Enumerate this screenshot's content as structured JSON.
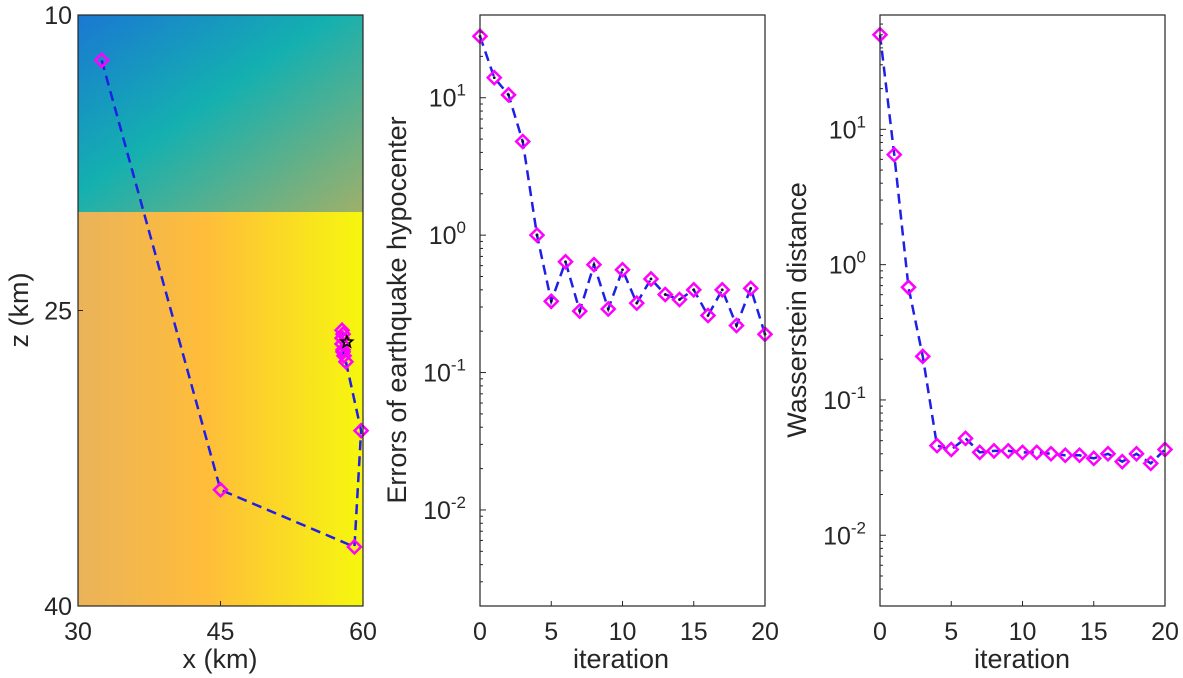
{
  "chart_data": [
    {
      "type": "scatter",
      "panel": "hypocenter-trajectory",
      "xlabel": "x (km)",
      "ylabel": "z (km)",
      "xlim": [
        30,
        60
      ],
      "ylim": [
        10,
        40
      ],
      "y_reversed": true,
      "xticks": [
        "30",
        "45",
        "60"
      ],
      "yticks": [
        "10",
        "25",
        "40"
      ],
      "background": {
        "upper_layer_z": [
          10,
          20
        ],
        "lower_layer_z": [
          20,
          40
        ],
        "upper_colors": [
          "#1a78d2",
          "#14b0b0",
          "#9fb06a"
        ],
        "lower_colors": [
          "#eab35a",
          "#ffbd3a",
          "#f6f70e"
        ]
      },
      "points": [
        {
          "x": 32.5,
          "z": 12.3
        },
        {
          "x": 45.0,
          "z": 34.1
        },
        {
          "x": 59.1,
          "z": 37.0
        },
        {
          "x": 59.8,
          "z": 31.1
        },
        {
          "x": 58.2,
          "z": 27.6
        },
        {
          "x": 58.0,
          "z": 27.3
        },
        {
          "x": 57.9,
          "z": 27.0
        },
        {
          "x": 57.8,
          "z": 26.7
        },
        {
          "x": 57.8,
          "z": 26.4
        },
        {
          "x": 57.9,
          "z": 26.2
        },
        {
          "x": 57.8,
          "z": 26.0
        },
        {
          "x": 57.9,
          "z": 27.1
        }
      ],
      "true_hypocenter": {
        "x": 58.3,
        "z": 26.6
      }
    },
    {
      "type": "line",
      "panel": "hypocenter-error",
      "xlabel": "iteration",
      "ylabel": "Errors of earthquake hypocenter",
      "xlim": [
        0,
        20
      ],
      "ylim": [
        0.002,
        40
      ],
      "yscale": "log",
      "xticks": [
        "0",
        "5",
        "10",
        "15",
        "20"
      ],
      "yticks": [
        {
          "base": "10",
          "exp": "1",
          "value": 10
        },
        {
          "base": "10",
          "exp": "0",
          "value": 1
        },
        {
          "base": "10",
          "exp": "-1",
          "value": 0.1
        },
        {
          "base": "10",
          "exp": "-2",
          "value": 0.01
        }
      ],
      "x": [
        0,
        1,
        2,
        3,
        4,
        5,
        6,
        7,
        8,
        9,
        10,
        11,
        12,
        13,
        14,
        15,
        16,
        17,
        18,
        19,
        20
      ],
      "values": [
        28,
        14,
        10.5,
        4.8,
        1.0,
        0.33,
        0.64,
        0.28,
        0.61,
        0.29,
        0.56,
        0.32,
        0.48,
        0.37,
        0.34,
        0.4,
        0.26,
        0.4,
        0.22,
        0.41,
        0.19
      ]
    },
    {
      "type": "line",
      "panel": "wasserstein-distance",
      "xlabel": "iteration",
      "ylabel": "Wasserstein distance",
      "xlim": [
        0,
        20
      ],
      "ylim": [
        0.003,
        70
      ],
      "yscale": "log",
      "xticks": [
        "0",
        "5",
        "10",
        "15",
        "20"
      ],
      "yticks": [
        {
          "base": "10",
          "exp": "1",
          "value": 10
        },
        {
          "base": "10",
          "exp": "0",
          "value": 1
        },
        {
          "base": "10",
          "exp": "-1",
          "value": 0.1
        },
        {
          "base": "10",
          "exp": "-2",
          "value": 0.01
        }
      ],
      "x": [
        0,
        1,
        2,
        3,
        4,
        5,
        6,
        7,
        8,
        9,
        10,
        11,
        12,
        13,
        14,
        15,
        16,
        17,
        18,
        19,
        20
      ],
      "values": [
        50,
        6.5,
        0.68,
        0.21,
        0.046,
        0.043,
        0.052,
        0.041,
        0.042,
        0.042,
        0.041,
        0.041,
        0.04,
        0.039,
        0.039,
        0.037,
        0.04,
        0.035,
        0.04,
        0.034,
        0.043
      ]
    }
  ],
  "colors": {
    "line": "#1f1fe6",
    "marker": "#ff00ff",
    "dot": "#111111",
    "axis": "#262626"
  }
}
